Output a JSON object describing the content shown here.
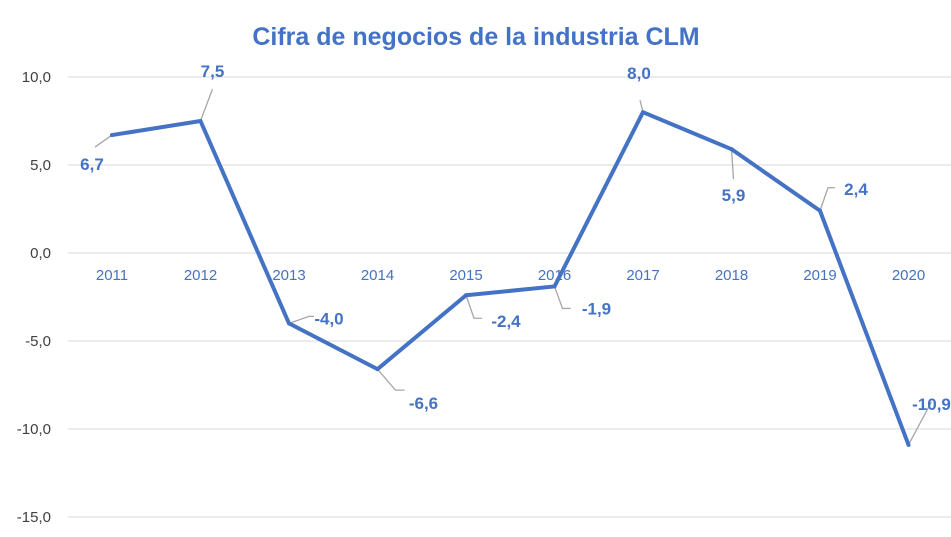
{
  "chart_data": {
    "type": "line",
    "title": "Cifra de negocios de la industria CLM",
    "categories": [
      "2011",
      "2012",
      "2013",
      "2014",
      "2015",
      "2016",
      "2017",
      "2018",
      "2019",
      "2020"
    ],
    "values": [
      6.7,
      7.5,
      -4.0,
      -6.6,
      -2.4,
      -1.9,
      8.0,
      5.9,
      2.4,
      -10.9
    ],
    "data_labels": [
      "6,7",
      "7,5",
      "-4,0",
      "-6,6",
      "-2,4",
      "-1,9",
      "8,0",
      "5,9",
      "2,4",
      "-10,9"
    ],
    "y_ticks": [
      "10,0",
      "5,0",
      "0,0",
      "-5,0",
      "-10,0",
      "-15,0"
    ],
    "y_tick_values": [
      10,
      5,
      0,
      -5,
      -10,
      -15
    ],
    "ylim": [
      -15,
      10
    ],
    "grid": true,
    "legend": "none",
    "xlabel": "",
    "ylabel": "",
    "colors": {
      "line": "#4472C4",
      "grid": "#D9D9D9",
      "leader": "#A6A6A6",
      "axis_text": "#404040"
    }
  }
}
